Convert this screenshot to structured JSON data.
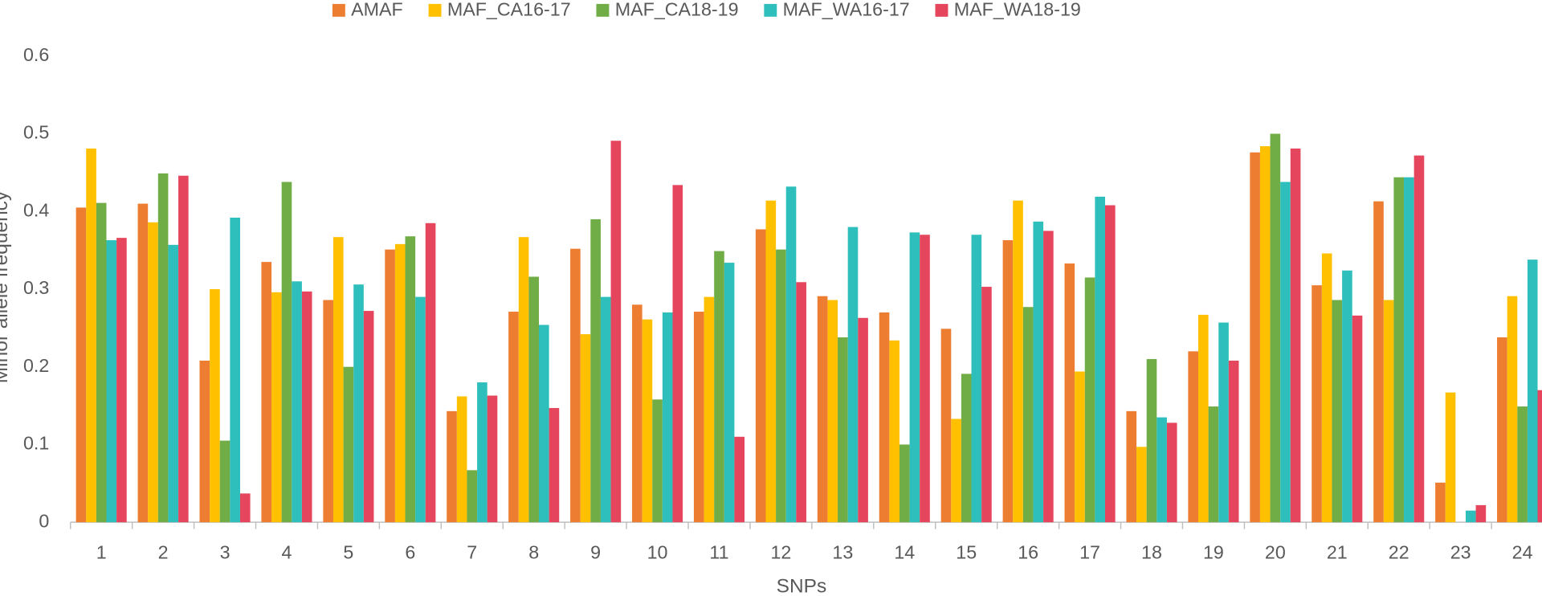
{
  "chart_data": {
    "type": "bar",
    "x_label": "SNPs",
    "y_label": "Minor allele frequency",
    "categories": [
      "1",
      "2",
      "3",
      "4",
      "5",
      "6",
      "7",
      "8",
      "9",
      "10",
      "11",
      "12",
      "13",
      "14",
      "15",
      "16",
      "17",
      "18",
      "19",
      "20",
      "21",
      "22",
      "23",
      "24"
    ],
    "series": [
      {
        "name": "AMAF",
        "color": "#ed7d31",
        "values": [
          0.405,
          0.41,
          0.208,
          0.335,
          0.286,
          0.351,
          0.143,
          0.271,
          0.352,
          0.28,
          0.271,
          0.377,
          0.291,
          0.27,
          0.249,
          0.363,
          0.333,
          0.143,
          0.22,
          0.476,
          0.305,
          0.413,
          0.051,
          0.238
        ]
      },
      {
        "name": "MAF_CA16-17",
        "color": "#ffc000",
        "values": [
          0.481,
          0.386,
          0.3,
          0.296,
          0.367,
          0.358,
          0.162,
          0.367,
          0.242,
          0.261,
          0.29,
          0.414,
          0.286,
          0.234,
          0.133,
          0.414,
          0.194,
          0.097,
          0.267,
          0.484,
          0.346,
          0.286,
          0.167,
          0.291
        ]
      },
      {
        "name": "MAF_CA18-19",
        "color": "#70ad47",
        "values": [
          0.411,
          0.449,
          0.105,
          0.438,
          0.2,
          0.368,
          0.067,
          0.316,
          0.39,
          0.158,
          0.349,
          0.351,
          0.238,
          0.1,
          0.191,
          0.277,
          0.315,
          0.21,
          0.149,
          0.5,
          0.286,
          0.444,
          0,
          0.149
        ]
      },
      {
        "name": "MAF_WA16-17",
        "color": "#2ebfbd",
        "values": [
          0.363,
          0.357,
          0.392,
          0.31,
          0.306,
          0.29,
          0.18,
          0.254,
          0.29,
          0.27,
          0.334,
          0.432,
          0.38,
          0.373,
          0.37,
          0.387,
          0.419,
          0.135,
          0.257,
          0.438,
          0.324,
          0.444,
          0.015,
          0.338
        ]
      },
      {
        "name": "MAF_WA18-19",
        "color": "#e5465e",
        "values": [
          0.366,
          0.446,
          0.037,
          0.297,
          0.272,
          0.385,
          0.163,
          0.147,
          0.491,
          0.434,
          0.11,
          0.309,
          0.263,
          0.37,
          0.303,
          0.375,
          0.408,
          0.128,
          0.208,
          0.481,
          0.266,
          0.472,
          0.022,
          0.17
        ]
      }
    ],
    "ylim": [
      0,
      0.6
    ],
    "yticks": [
      0,
      0.1,
      0.2,
      0.3,
      0.4,
      0.5,
      0.6
    ],
    "grid": false,
    "legend": "top"
  }
}
